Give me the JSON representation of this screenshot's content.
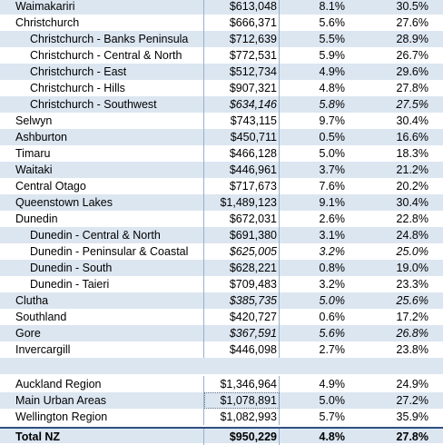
{
  "rows": [
    {
      "name": "Waimakariri",
      "value": "$613,048",
      "growth": "8.1%",
      "pct": "30.5%",
      "level": 0,
      "italic": false
    },
    {
      "name": "Christchurch",
      "value": "$666,371",
      "growth": "5.6%",
      "pct": "27.6%",
      "level": 0,
      "italic": false
    },
    {
      "name": "Christchurch - Banks Peninsula",
      "value": "$712,639",
      "growth": "5.5%",
      "pct": "28.9%",
      "level": 1,
      "italic": false
    },
    {
      "name": "Christchurch - Central & North",
      "value": "$772,531",
      "growth": "5.9%",
      "pct": "26.7%",
      "level": 1,
      "italic": false
    },
    {
      "name": "Christchurch - East",
      "value": "$512,734",
      "growth": "4.9%",
      "pct": "29.6%",
      "level": 1,
      "italic": false
    },
    {
      "name": "Christchurch - Hills",
      "value": "$907,321",
      "growth": "4.8%",
      "pct": "27.8%",
      "level": 1,
      "italic": false
    },
    {
      "name": "Christchurch - Southwest",
      "value": "$634,146",
      "growth": "5.8%",
      "pct": "27.5%",
      "level": 1,
      "italic": true
    },
    {
      "name": "Selwyn",
      "value": "$743,115",
      "growth": "9.7%",
      "pct": "30.4%",
      "level": 0,
      "italic": false
    },
    {
      "name": "Ashburton",
      "value": "$450,711",
      "growth": "0.5%",
      "pct": "16.6%",
      "level": 0,
      "italic": false
    },
    {
      "name": "Timaru",
      "value": "$466,128",
      "growth": "5.0%",
      "pct": "18.3%",
      "level": 0,
      "italic": false
    },
    {
      "name": "Waitaki",
      "value": "$446,961",
      "growth": "3.7%",
      "pct": "21.2%",
      "level": 0,
      "italic": false
    },
    {
      "name": "Central Otago",
      "value": "$717,673",
      "growth": "7.6%",
      "pct": "20.2%",
      "level": 0,
      "italic": false
    },
    {
      "name": "Queenstown Lakes",
      "value": "$1,489,123",
      "growth": "9.1%",
      "pct": "30.4%",
      "level": 0,
      "italic": false
    },
    {
      "name": "Dunedin",
      "value": "$672,031",
      "growth": "2.6%",
      "pct": "22.8%",
      "level": 0,
      "italic": false
    },
    {
      "name": "Dunedin - Central & North",
      "value": "$691,380",
      "growth": "3.1%",
      "pct": "24.8%",
      "level": 1,
      "italic": false
    },
    {
      "name": "Dunedin - Peninsular & Coastal",
      "value": "$625,005",
      "growth": "3.2%",
      "pct": "25.0%",
      "level": 1,
      "italic": true
    },
    {
      "name": "Dunedin - South",
      "value": "$628,221",
      "growth": "0.8%",
      "pct": "19.0%",
      "level": 1,
      "italic": false
    },
    {
      "name": "Dunedin - Taieri",
      "value": "$709,483",
      "growth": "3.2%",
      "pct": "23.3%",
      "level": 1,
      "italic": false
    },
    {
      "name": "Clutha",
      "value": "$385,735",
      "growth": "5.0%",
      "pct": "25.6%",
      "level": 0,
      "italic": true
    },
    {
      "name": "Southland",
      "value": "$420,727",
      "growth": "0.6%",
      "pct": "17.2%",
      "level": 0,
      "italic": false
    },
    {
      "name": "Gore",
      "value": "$367,591",
      "growth": "5.6%",
      "pct": "26.8%",
      "level": 0,
      "italic": true
    },
    {
      "name": "Invercargill",
      "value": "$446,098",
      "growth": "2.7%",
      "pct": "23.8%",
      "level": 0,
      "italic": false
    }
  ],
  "summary": [
    {
      "name": "Auckland Region",
      "value": "$1,346,964",
      "growth": "4.9%",
      "pct": "24.9%"
    },
    {
      "name": "Main Urban Areas",
      "value": "$1,078,891",
      "growth": "5.0%",
      "pct": "27.2%"
    },
    {
      "name": "Wellington Region",
      "value": "$1,082,993",
      "growth": "5.7%",
      "pct": "35.9%"
    }
  ],
  "total": {
    "name": "Total NZ",
    "value": "$950,229",
    "growth": "4.8%",
    "pct": "27.8%"
  },
  "colors": {
    "band": "#dce6f1",
    "border": "#9aaecb",
    "total_rule": "#2f4f7f"
  }
}
